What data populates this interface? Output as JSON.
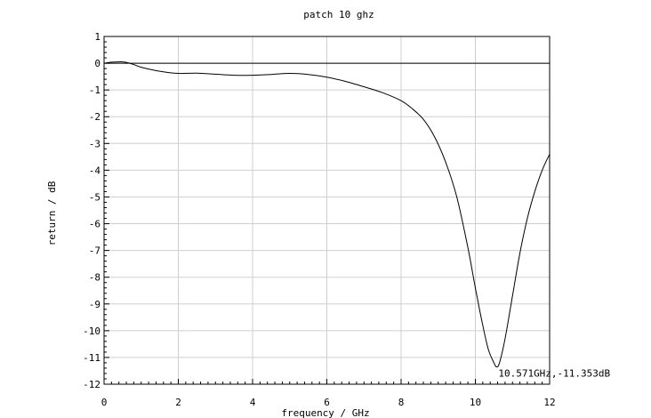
{
  "chart_data": {
    "type": "line",
    "title": "patch 10 ghz",
    "xlabel": "frequency / GHz",
    "ylabel": "return / dB",
    "xlim": [
      0,
      12
    ],
    "ylim": [
      -12,
      1
    ],
    "grid": true,
    "x_ticks": [
      0,
      2,
      4,
      6,
      8,
      10,
      12
    ],
    "y_ticks": [
      1,
      0,
      -1,
      -2,
      -3,
      -4,
      -5,
      -6,
      -7,
      -8,
      -9,
      -10,
      -11,
      -12
    ],
    "series": [
      {
        "x": [
          0,
          0.2,
          0.4,
          0.5,
          0.6,
          0.8,
          1.0,
          1.5,
          2.0,
          2.5,
          3.0,
          3.5,
          4.0,
          4.5,
          5.0,
          5.5,
          6.0,
          6.5,
          7.0,
          7.5,
          8.0,
          8.3,
          8.6,
          8.9,
          9.2,
          9.5,
          9.8,
          10.0,
          10.2,
          10.35,
          10.5,
          10.571,
          10.65,
          10.8,
          11.0,
          11.2,
          11.4,
          11.6,
          11.8,
          12.0
        ],
        "values": [
          0.0,
          0.04,
          0.05,
          0.05,
          0.03,
          -0.05,
          -0.15,
          -0.3,
          -0.38,
          -0.37,
          -0.41,
          -0.45,
          -0.45,
          -0.42,
          -0.38,
          -0.42,
          -0.52,
          -0.68,
          -0.88,
          -1.1,
          -1.4,
          -1.7,
          -2.1,
          -2.75,
          -3.7,
          -5.0,
          -6.9,
          -8.4,
          -9.8,
          -10.7,
          -11.2,
          -11.353,
          -11.2,
          -10.3,
          -8.7,
          -7.1,
          -5.8,
          -4.8,
          -4.0,
          -3.4
        ]
      }
    ],
    "annotation": {
      "text": "10.571GHz,-11.353dB",
      "x": 10.571,
      "y": -11.353
    }
  }
}
